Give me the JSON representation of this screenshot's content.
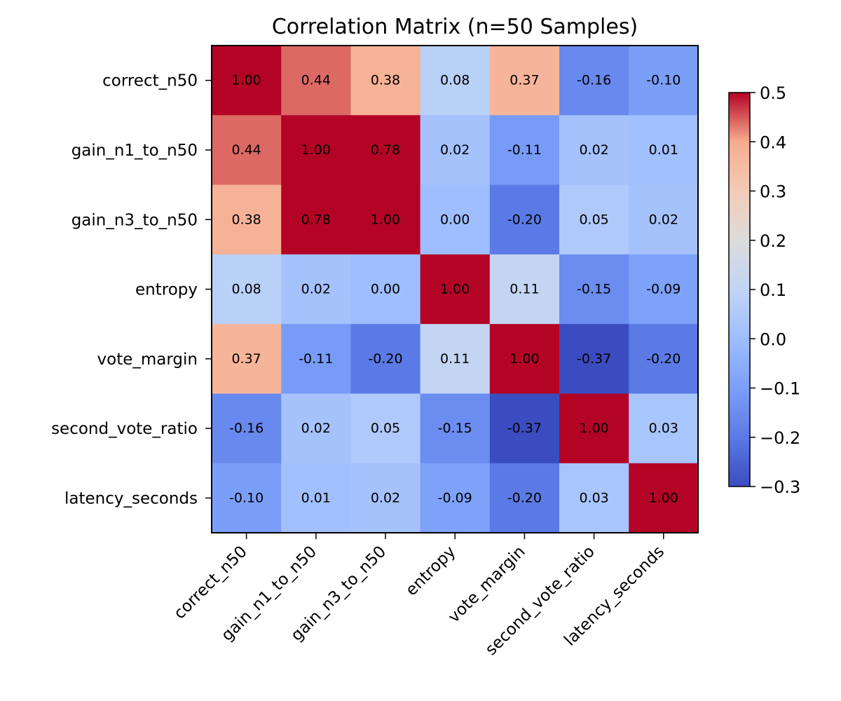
{
  "chart_data": {
    "type": "heatmap",
    "title": "Correlation Matrix (n=50 Samples)",
    "xlabel": "",
    "ylabel": "",
    "rows": [
      "correct_n50",
      "gain_n1_to_n50",
      "gain_n3_to_n50",
      "entropy",
      "vote_margin",
      "second_vote_ratio",
      "latency_seconds"
    ],
    "columns": [
      "correct_n50",
      "gain_n1_to_n50",
      "gain_n3_to_n50",
      "entropy",
      "vote_margin",
      "second_vote_ratio",
      "latency_seconds"
    ],
    "values": [
      [
        1.0,
        0.44,
        0.38,
        0.08,
        0.37,
        -0.16,
        -0.1
      ],
      [
        0.44,
        1.0,
        0.78,
        0.02,
        -0.11,
        0.02,
        0.01
      ],
      [
        0.38,
        0.78,
        1.0,
        0.0,
        -0.2,
        0.05,
        0.02
      ],
      [
        0.08,
        0.02,
        0.0,
        1.0,
        0.11,
        -0.15,
        -0.09
      ],
      [
        0.37,
        -0.11,
        -0.2,
        0.11,
        1.0,
        -0.37,
        -0.2
      ],
      [
        -0.16,
        0.02,
        0.05,
        -0.15,
        -0.37,
        1.0,
        0.03
      ],
      [
        -0.1,
        0.01,
        0.02,
        -0.09,
        -0.2,
        0.03,
        1.0
      ]
    ],
    "value_labels": [
      [
        "1.00",
        "0.44",
        "0.38",
        "0.08",
        "0.37",
        "-0.16",
        "-0.10"
      ],
      [
        "0.44",
        "1.00",
        "0.78",
        "0.02",
        "-0.11",
        "0.02",
        "0.01"
      ],
      [
        "0.38",
        "0.78",
        "1.00",
        "0.00",
        "-0.20",
        "0.05",
        "0.02"
      ],
      [
        "0.08",
        "0.02",
        "0.00",
        "1.00",
        "0.11",
        "-0.15",
        "-0.09"
      ],
      [
        "0.37",
        "-0.11",
        "-0.20",
        "0.11",
        "1.00",
        "-0.37",
        "-0.20"
      ],
      [
        "-0.16",
        "0.02",
        "0.05",
        "-0.15",
        "-0.37",
        "1.00",
        "0.03"
      ],
      [
        "-0.10",
        "0.01",
        "0.02",
        "-0.09",
        "-0.20",
        "0.03",
        "1.00"
      ]
    ],
    "colormap": "coolwarm",
    "colorbar": {
      "range": [
        -0.3,
        0.5
      ],
      "ticks": [
        0.5,
        0.4,
        0.3,
        0.2,
        0.1,
        0.0,
        -0.1,
        -0.2,
        -0.3
      ],
      "tick_labels": [
        "0.5",
        "0.4",
        "0.3",
        "0.2",
        "0.1",
        "0.0",
        "−0.1",
        "−0.2",
        "−0.3"
      ]
    },
    "colors": {
      "low": "#3b4cc0",
      "mid": "#dddddd",
      "high": "#b40426"
    },
    "grid": false,
    "legend": "colorbar-right"
  }
}
